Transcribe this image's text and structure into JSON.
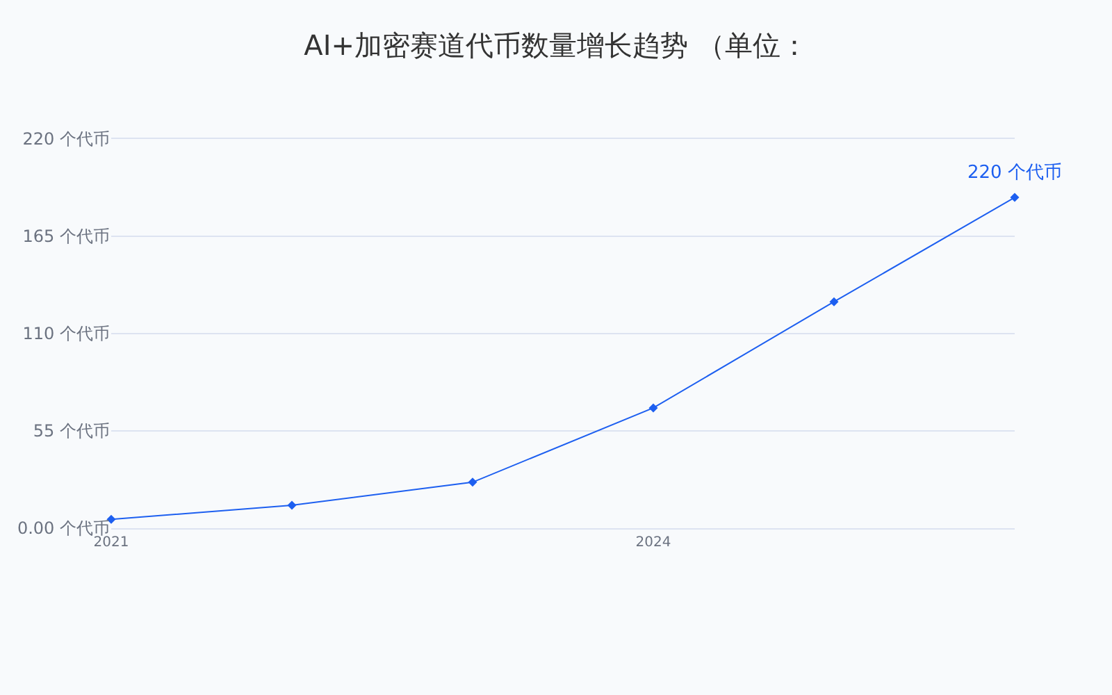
{
  "chart_data": {
    "type": "line",
    "title": "AI+加密赛道代币数量增长趋势 （单位：",
    "x": [
      2021,
      2022,
      2023,
      2024,
      2025,
      2026
    ],
    "series": [
      {
        "color": "#1d5ff0",
        "values": [
          5,
          13,
          26,
          68,
          128,
          187
        ]
      }
    ],
    "xlim": [
      2021,
      2026
    ],
    "xticks": [
      2021,
      2024
    ],
    "ylim": [
      0,
      220
    ],
    "yticks": [
      {
        "value": 0,
        "label": "0.00 个代币"
      },
      {
        "value": 55,
        "label": "55 个代币"
      },
      {
        "value": 110,
        "label": "110 个代币"
      },
      {
        "value": 165,
        "label": "165 个代币"
      },
      {
        "value": 220,
        "label": "220 个代币"
      }
    ],
    "grid": "y",
    "marker": "diamond",
    "line_style": "solid",
    "annotations": [
      {
        "text": "220 个代币",
        "x": 2026,
        "y": 187
      }
    ]
  }
}
